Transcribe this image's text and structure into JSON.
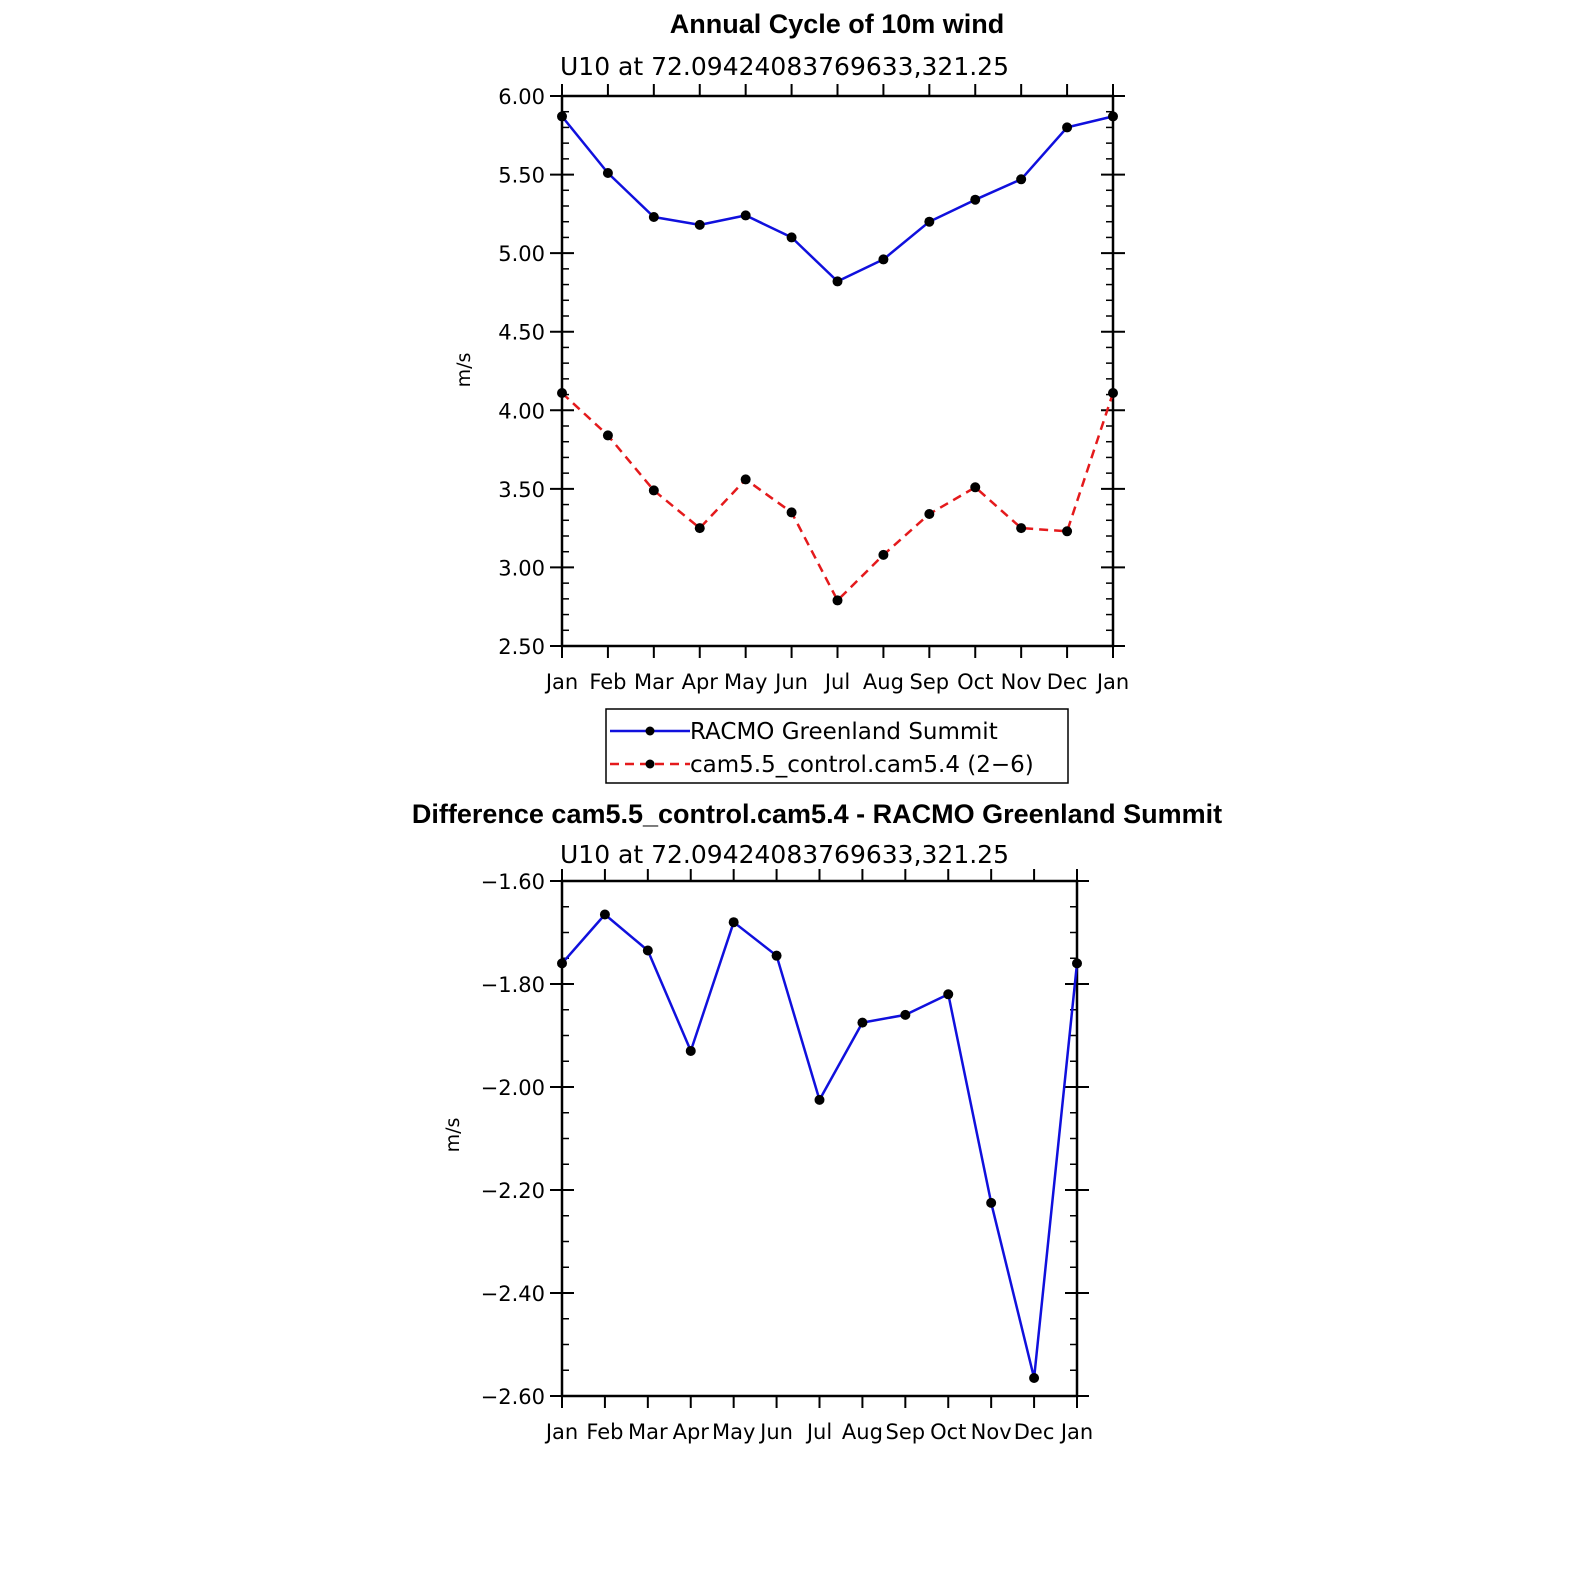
{
  "colors": {
    "racmo": "#1010dd",
    "cam": "#e41a1c",
    "marker": "#000000",
    "legend_border": "#000000"
  },
  "chart_data": [
    {
      "type": "line",
      "title": "Annual Cycle of 10m wind",
      "subtitle": "U10  at  72.09424083769633,321.25",
      "ylabel": "m/s",
      "xlabel": "",
      "categories": [
        "Jan",
        "Feb",
        "Mar",
        "Apr",
        "May",
        "Jun",
        "Jul",
        "Aug",
        "Sep",
        "Oct",
        "Nov",
        "Dec",
        "Jan"
      ],
      "ylim": [
        2.5,
        6.0
      ],
      "yticks": [
        "6.00",
        "5.50",
        "5.00",
        "4.50",
        "4.00",
        "3.50",
        "3.00",
        "2.50"
      ],
      "legend_position": "below",
      "series": [
        {
          "name": "RACMO Greenland Summit",
          "style": "solid",
          "color": "#1010dd",
          "values": [
            5.87,
            5.51,
            5.23,
            5.18,
            5.24,
            5.1,
            4.82,
            4.96,
            5.2,
            5.34,
            5.47,
            5.8,
            5.87
          ]
        },
        {
          "name": "cam5.5_control.cam5.4 (2−6)",
          "style": "dashed",
          "color": "#e41a1c",
          "values": [
            4.11,
            3.84,
            3.49,
            3.25,
            3.56,
            3.35,
            2.79,
            3.08,
            3.34,
            3.51,
            3.25,
            3.23,
            4.11
          ]
        }
      ]
    },
    {
      "type": "line",
      "title": "Difference cam5.5_control.cam5.4 - RACMO Greenland Summit",
      "subtitle": "U10  at  72.09424083769633,321.25",
      "ylabel": "m/s",
      "xlabel": "",
      "categories": [
        "Jan",
        "Feb",
        "Mar",
        "Apr",
        "May",
        "Jun",
        "Jul",
        "Aug",
        "Sep",
        "Oct",
        "Nov",
        "Dec",
        "Jan"
      ],
      "ylim": [
        -2.6,
        -1.6
      ],
      "yticks": [
        "−1.60",
        "−1.80",
        "−2.00",
        "−2.20",
        "−2.40",
        "−2.60"
      ],
      "series": [
        {
          "style": "solid",
          "color": "#1010dd",
          "values": [
            -1.76,
            -1.665,
            -1.735,
            -1.93,
            -1.68,
            -1.745,
            -2.025,
            -1.875,
            -1.86,
            -1.82,
            -2.225,
            -2.565,
            -1.76
          ]
        }
      ]
    }
  ]
}
